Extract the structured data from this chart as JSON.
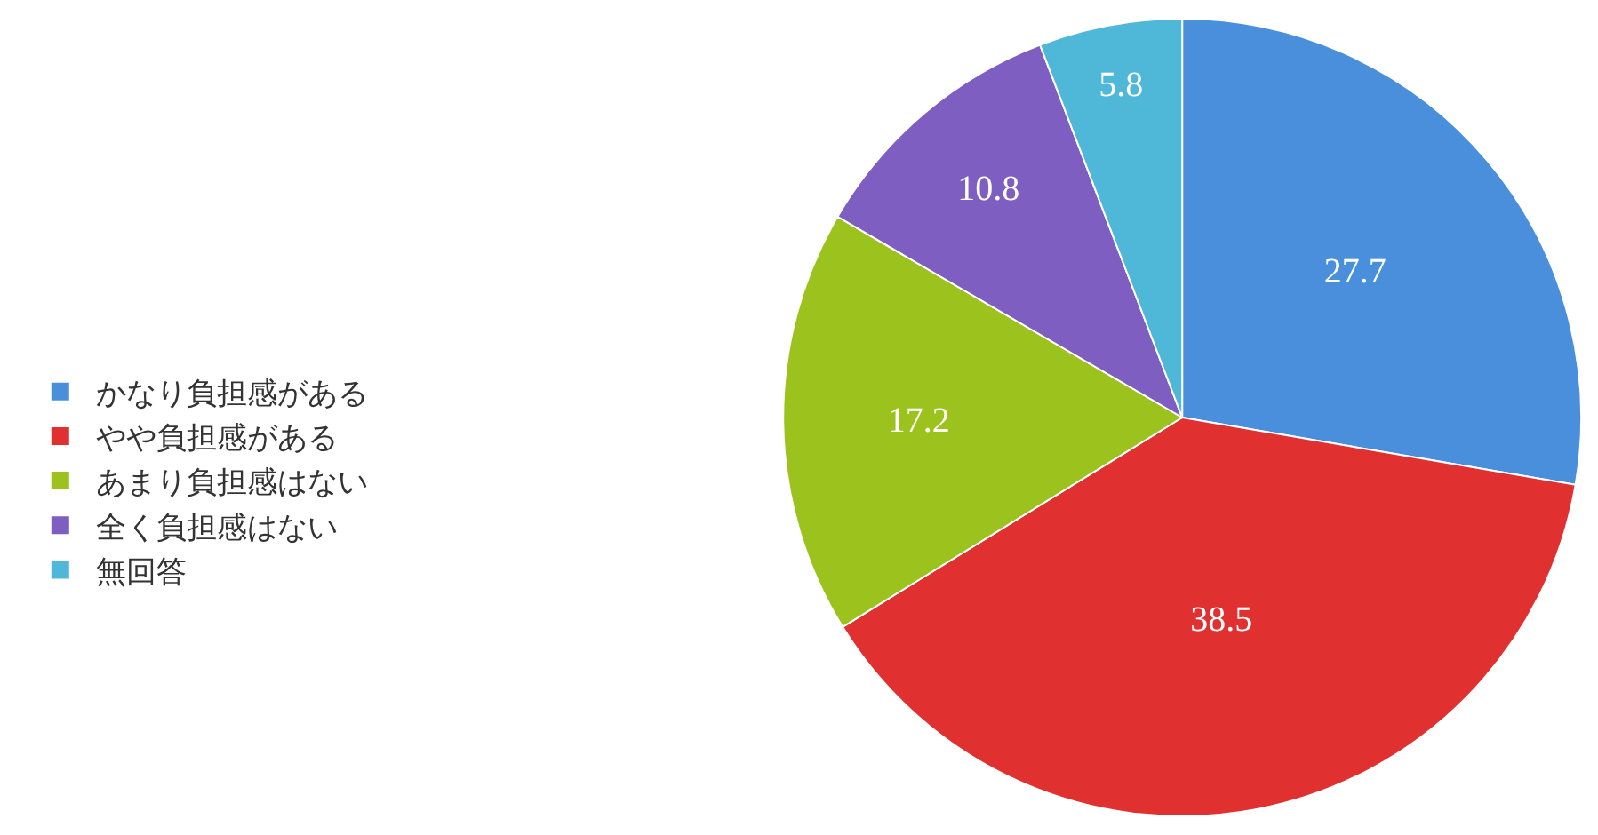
{
  "chart_data": {
    "type": "pie",
    "categories": [
      "かなり負担感がある",
      "やや負担感がある",
      "あまり負担感はない",
      "全く負担感はない",
      "無回答"
    ],
    "values": [
      27.7,
      38.5,
      17.2,
      10.8,
      5.8
    ],
    "colors": [
      "#4a8fdc",
      "#e03030",
      "#9cc21e",
      "#7e5ec0",
      "#4fb8d8"
    ],
    "data_labels": true,
    "legend": "left"
  }
}
